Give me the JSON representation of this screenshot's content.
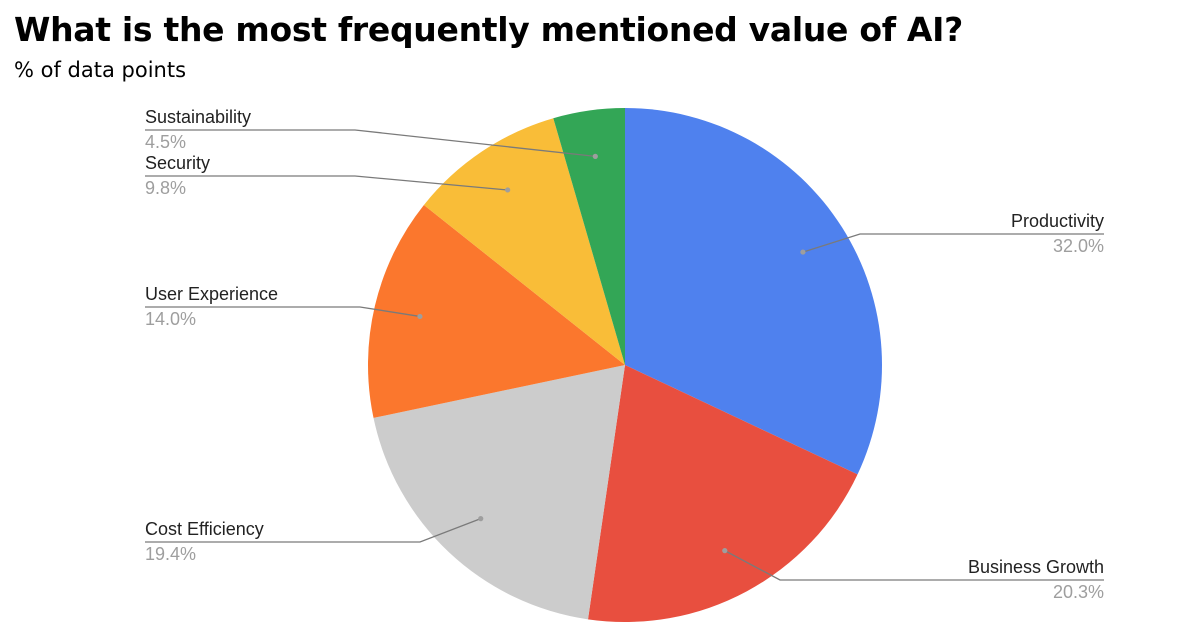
{
  "chart_data": {
    "type": "pie",
    "title": "What is the most frequently mentioned value of AI?",
    "subtitle": "% of data points",
    "slices": [
      {
        "label": "Productivity",
        "value": 32.0,
        "value_label": "32.0%",
        "color": "#4f81ee"
      },
      {
        "label": "Business Growth",
        "value": 20.3,
        "value_label": "20.3%",
        "color": "#e84f3f"
      },
      {
        "label": "Cost Efficiency",
        "value": 19.4,
        "value_label": "19.4%",
        "color": "#cccccc"
      },
      {
        "label": "User Experience",
        "value": 14.0,
        "value_label": "14.0%",
        "color": "#fb772d"
      },
      {
        "label": "Security",
        "value": 9.8,
        "value_label": "9.8%",
        "color": "#f9bd38"
      },
      {
        "label": "Sustainability",
        "value": 4.5,
        "value_label": "4.5%",
        "color": "#33a656"
      }
    ],
    "start_angle_deg": 0,
    "direction": "clockwise",
    "legend": "none",
    "labels": "outside-with-leader-lines"
  }
}
